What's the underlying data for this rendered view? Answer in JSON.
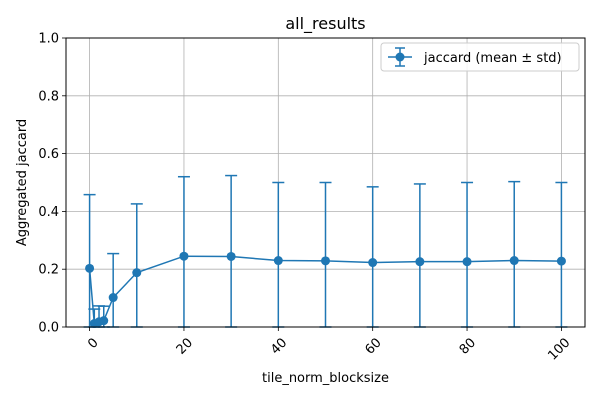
{
  "chart_data": {
    "type": "line",
    "title": "all_results",
    "xlabel": "tile_norm_blocksize",
    "ylabel": "Aggregated jaccard",
    "xlim": [
      -5,
      105
    ],
    "ylim": [
      0,
      1.0
    ],
    "xticks": [
      0,
      20,
      40,
      60,
      80,
      100
    ],
    "yticks": [
      0.0,
      0.2,
      0.4,
      0.6,
      0.8,
      1.0
    ],
    "xtick_labels": [
      "0",
      "20",
      "40",
      "60",
      "80",
      "100"
    ],
    "ytick_labels": [
      "0.0",
      "0.2",
      "0.4",
      "0.6",
      "0.8",
      "1.0"
    ],
    "grid": true,
    "legend_position": "top-right",
    "color": "#1f77b4",
    "series": [
      {
        "name": "jaccard (mean ± std)",
        "x": [
          0,
          1,
          2,
          3,
          5,
          10,
          20,
          30,
          40,
          50,
          60,
          70,
          80,
          90,
          100
        ],
        "y": [
          0.203,
          0.012,
          0.018,
          0.022,
          0.102,
          0.188,
          0.245,
          0.244,
          0.23,
          0.229,
          0.223,
          0.226,
          0.226,
          0.23,
          0.228
        ],
        "std": [
          0.255,
          0.05,
          0.055,
          0.05,
          0.152,
          0.238,
          0.275,
          0.28,
          0.27,
          0.271,
          0.262,
          0.269,
          0.274,
          0.273,
          0.272
        ]
      }
    ]
  }
}
